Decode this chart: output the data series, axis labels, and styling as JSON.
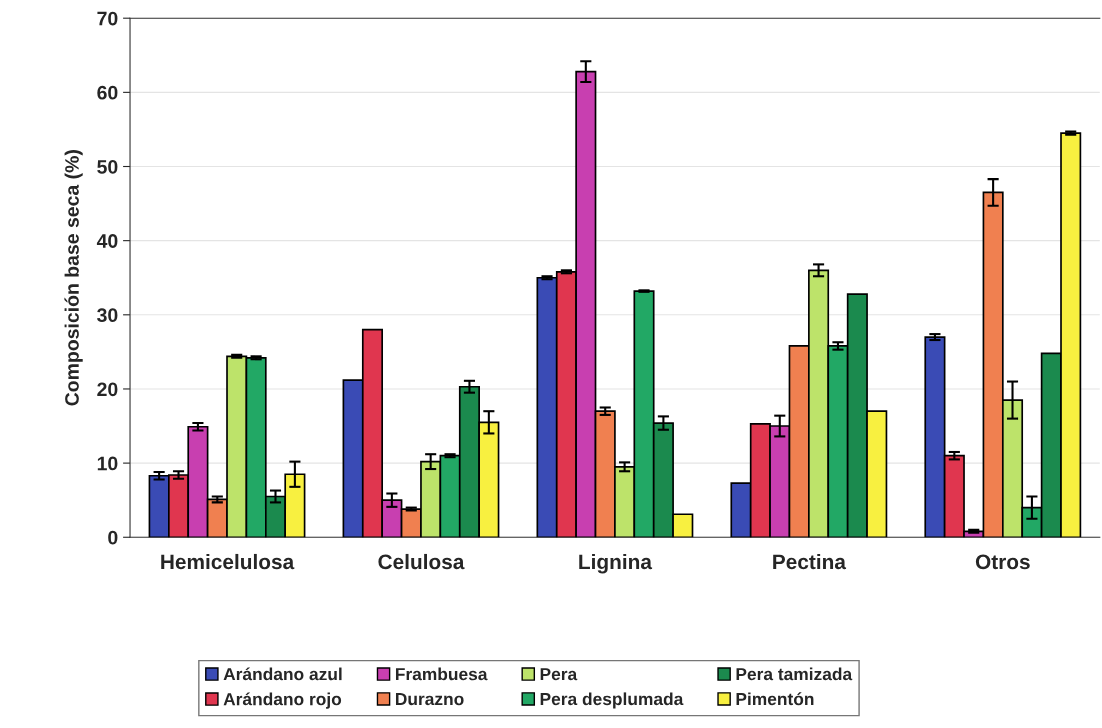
{
  "chart_data": {
    "type": "bar",
    "ylabel": "Composición base seca (%)",
    "categories": [
      "Hemicelulosa",
      "Celulosa",
      "Lignina",
      "Pectina",
      "Otros"
    ],
    "series": [
      {
        "name": "Arándano azul",
        "color": "#3a4bb5",
        "values": [
          8.3,
          21.2,
          35.0,
          7.3,
          27.0
        ],
        "errors": [
          0.5,
          null,
          0.2,
          null,
          0.4
        ]
      },
      {
        "name": "Arándano rojo",
        "color": "#e0364f",
        "values": [
          8.4,
          28.0,
          35.8,
          15.3,
          11.0
        ],
        "errors": [
          0.5,
          null,
          0.2,
          null,
          0.5
        ]
      },
      {
        "name": "Frambuesa",
        "color": "#c83fb0",
        "values": [
          14.9,
          5.0,
          62.8,
          15.0,
          0.8
        ],
        "errors": [
          0.5,
          0.9,
          1.4,
          1.4,
          0.2
        ]
      },
      {
        "name": "Durazno",
        "color": "#f08050",
        "values": [
          5.1,
          3.8,
          17.0,
          25.8,
          46.5
        ],
        "errors": [
          0.4,
          0.2,
          0.5,
          null,
          1.8
        ]
      },
      {
        "name": "Pera",
        "color": "#bde36a",
        "values": [
          24.4,
          10.2,
          9.5,
          36.0,
          18.5
        ],
        "errors": [
          0.2,
          1.0,
          0.6,
          0.8,
          2.5
        ]
      },
      {
        "name": "Pera desplumada",
        "color": "#22a865",
        "values": [
          24.2,
          11.0,
          33.2,
          25.8,
          4.0
        ],
        "errors": [
          0.2,
          0.2,
          0.1,
          0.5,
          1.5
        ]
      },
      {
        "name": "Pera tamizada",
        "color": "#1b8a4e",
        "values": [
          5.5,
          20.3,
          15.4,
          32.8,
          24.8
        ],
        "errors": [
          0.8,
          0.8,
          0.9,
          null,
          null
        ]
      },
      {
        "name": "Pimentón",
        "color": "#f8f040",
        "values": [
          8.5,
          15.5,
          3.1,
          17.0,
          54.5
        ],
        "errors": [
          1.7,
          1.5,
          null,
          null,
          0.2
        ]
      }
    ],
    "ylim": [
      0,
      70
    ],
    "yticks": [
      0,
      10,
      20,
      30,
      40,
      50,
      60,
      70
    ],
    "grid": "y",
    "legend": "bottom"
  }
}
